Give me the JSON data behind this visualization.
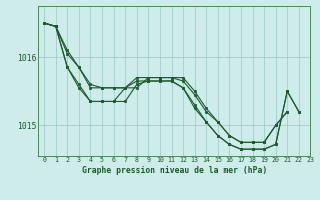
{
  "title": "Graphe pression niveau de la mer (hPa)",
  "background_color": "#ceecea",
  "grid_color": "#9ecfcc",
  "line_color": "#1a5c2a",
  "xlim": [
    -0.5,
    23
  ],
  "ylim": [
    1014.55,
    1016.75
  ],
  "yticks": [
    1015,
    1016
  ],
  "xticks": [
    0,
    1,
    2,
    3,
    4,
    5,
    6,
    7,
    8,
    9,
    10,
    11,
    12,
    13,
    14,
    15,
    16,
    17,
    18,
    19,
    20,
    21,
    22,
    23
  ],
  "series": [
    [
      1016.5,
      1016.45,
      1016.05,
      1015.85,
      1015.55,
      1015.55,
      1015.55,
      1015.55,
      1015.55,
      1015.7,
      1015.7,
      1015.7,
      1015.7,
      1015.5,
      1015.25,
      1015.05,
      1014.85,
      1014.75,
      1014.75,
      1014.75,
      1015.0,
      1015.2,
      null,
      null
    ],
    [
      1016.5,
      1016.45,
      1016.1,
      1015.85,
      1015.6,
      1015.55,
      1015.55,
      1015.55,
      1015.7,
      1015.7,
      1015.7,
      1015.7,
      1015.65,
      1015.45,
      1015.2,
      1015.05,
      1014.85,
      1014.75,
      1014.75,
      1014.75,
      1015.0,
      1015.2,
      null,
      null
    ],
    [
      1016.5,
      1016.45,
      1015.85,
      1015.6,
      1015.35,
      1015.35,
      1015.35,
      1015.35,
      1015.6,
      1015.65,
      1015.65,
      1015.65,
      1015.55,
      1015.3,
      1015.05,
      1014.85,
      1014.72,
      1014.65,
      1014.65,
      1014.65,
      1014.72,
      1015.5,
      1015.2,
      null
    ],
    [
      1016.5,
      1016.45,
      1015.85,
      1015.55,
      1015.35,
      1015.35,
      1015.35,
      1015.55,
      1015.65,
      1015.65,
      1015.65,
      1015.65,
      1015.55,
      1015.25,
      1015.05,
      1014.85,
      1014.72,
      1014.65,
      1014.65,
      1014.65,
      1014.72,
      1015.5,
      1015.2,
      null
    ]
  ]
}
